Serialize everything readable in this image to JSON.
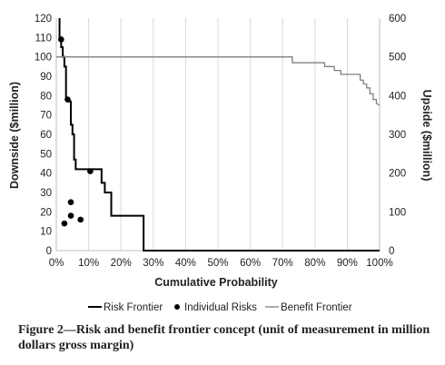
{
  "chart_data": {
    "type": "line",
    "xlabel": "Cumulative Probability",
    "ylabel_left": "Downside ($million)",
    "ylabel_right": "Upside ($million)",
    "xlim": [
      0,
      100
    ],
    "ylim_left": [
      0,
      120
    ],
    "ylim_right": [
      0,
      600
    ],
    "x_ticks": [
      0,
      10,
      20,
      30,
      40,
      50,
      60,
      70,
      80,
      90,
      100
    ],
    "x_tick_labels": [
      "0%",
      "10%",
      "20%",
      "30%",
      "40%",
      "50%",
      "60%",
      "70%",
      "80%",
      "90%",
      "100%"
    ],
    "y_left_ticks": [
      0,
      10,
      20,
      30,
      40,
      50,
      60,
      70,
      80,
      90,
      100,
      110,
      120
    ],
    "y_right_ticks": [
      0,
      100,
      200,
      300,
      400,
      500,
      600
    ],
    "grid": "vertical",
    "legend_position": "bottom",
    "series": [
      {
        "name": "Risk Frontier",
        "kind": "step-line",
        "axis": "left",
        "color": "#000000",
        "x": [
          1,
          1,
          1.5,
          1.5,
          2,
          2,
          2.5,
          2.5,
          3,
          3,
          4,
          4,
          4.5,
          4.5,
          5,
          5,
          5.5,
          5.5,
          6,
          6,
          10,
          10,
          14,
          14,
          15,
          15,
          17,
          17,
          27,
          27,
          100
        ],
        "y": [
          120,
          110,
          110,
          105,
          105,
          100,
          100,
          95,
          95,
          78,
          78,
          77,
          77,
          65,
          65,
          60,
          60,
          47,
          47,
          42,
          42,
          42,
          42,
          35,
          35,
          30,
          30,
          18,
          18,
          0,
          0
        ]
      },
      {
        "name": "Individual Risks",
        "kind": "scatter",
        "axis": "left",
        "color": "#000000",
        "x": [
          1.5,
          3.5,
          10.5,
          4.5,
          4.5,
          2.5,
          7.5
        ],
        "y": [
          109,
          78,
          41,
          25,
          18,
          14,
          16
        ]
      },
      {
        "name": "Benefit Frontier",
        "kind": "step-line",
        "axis": "right",
        "color": "#808080",
        "x": [
          0,
          73,
          73,
          83,
          83,
          86,
          86,
          88,
          88,
          94,
          94,
          95,
          95,
          96,
          96,
          97,
          97,
          98,
          98,
          99,
          99,
          100
        ],
        "y": [
          500,
          500,
          485,
          485,
          475,
          475,
          465,
          465,
          455,
          455,
          440,
          440,
          430,
          430,
          420,
          420,
          405,
          405,
          390,
          390,
          380,
          375
        ]
      }
    ]
  },
  "caption": "Figure 2—Risk and benefit frontier concept (unit of measurement in million dollars gross margin)"
}
